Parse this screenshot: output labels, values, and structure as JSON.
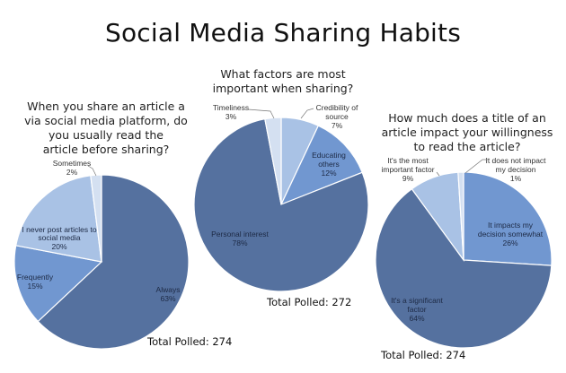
{
  "title": "Social Media Sharing Habits",
  "colors": {
    "dark": "#55719f",
    "medium": "#7197d0",
    "light": "#a9c2e5",
    "lightest": "#d4e0f1"
  },
  "charts": [
    {
      "question": "When you share an article a via social media platform, do you usually read the article before sharing?",
      "question_lines": [
        "When you share an article a",
        "via social media platform, do",
        "you usually read the",
        "article before sharing?"
      ],
      "total": "Total Polled: 274",
      "slices": [
        {
          "label": "Always",
          "pct": "63%"
        },
        {
          "label": "Frequently",
          "pct": "15%"
        },
        {
          "label": "I never post articles to social media",
          "label_lines": [
            "I never post articles to",
            "social media"
          ],
          "pct": "20%"
        },
        {
          "label": "Sometimes",
          "pct": "2%"
        }
      ]
    },
    {
      "question": "What factors are most important when sharing?",
      "question_lines": [
        "What factors are most",
        "important when sharing?"
      ],
      "total": "Total Polled: 272",
      "slices": [
        {
          "label": "Credibility of source",
          "label_lines": [
            "Credibility of",
            "source"
          ],
          "pct": "7%"
        },
        {
          "label": "Educating others",
          "label_lines": [
            "Educating",
            "others"
          ],
          "pct": "12%"
        },
        {
          "label": "Personal interest",
          "pct": "78%"
        },
        {
          "label": "Timeliness",
          "pct": "3%"
        }
      ]
    },
    {
      "question": "How much does a title of an article impact your willingness to read the article?",
      "question_lines": [
        "How much does a title of an",
        "article impact your willingness",
        "to read the article?"
      ],
      "total": "Total Polled: 274",
      "slices": [
        {
          "label": "It impacts my decision somewhat",
          "label_lines": [
            "It impacts my",
            "decision somewhat"
          ],
          "pct": "26%"
        },
        {
          "label": "It's a significant factor",
          "label_lines": [
            "It's a significant",
            "factor"
          ],
          "pct": "64%"
        },
        {
          "label": "It's the most important factor",
          "label_lines": [
            "It's the most",
            "important factor"
          ],
          "pct": "9%"
        },
        {
          "label": "It does not impact my decision",
          "label_lines": [
            "It does not impact",
            "my decision"
          ],
          "pct": "1%"
        }
      ]
    }
  ],
  "chart_data": [
    {
      "type": "pie",
      "title": "When you share an article a via social media platform, do you usually read the article before sharing?",
      "categories": [
        "Always",
        "Frequently",
        "I never post articles to social media",
        "Sometimes"
      ],
      "values": [
        63,
        15,
        20,
        2
      ],
      "unit": "%",
      "annotation": "Total Polled: 274"
    },
    {
      "type": "pie",
      "title": "What factors are most important when sharing?",
      "categories": [
        "Credibility of source",
        "Educating others",
        "Personal interest",
        "Timeliness"
      ],
      "values": [
        7,
        12,
        78,
        3
      ],
      "unit": "%",
      "annotation": "Total Polled: 272"
    },
    {
      "type": "pie",
      "title": "How much does a title of an article impact your willingness to read the article?",
      "categories": [
        "It impacts my decision somewhat",
        "It's a significant factor",
        "It's the most important factor",
        "It does not impact my decision"
      ],
      "values": [
        26,
        64,
        9,
        1
      ],
      "unit": "%",
      "annotation": "Total Polled: 274"
    }
  ]
}
